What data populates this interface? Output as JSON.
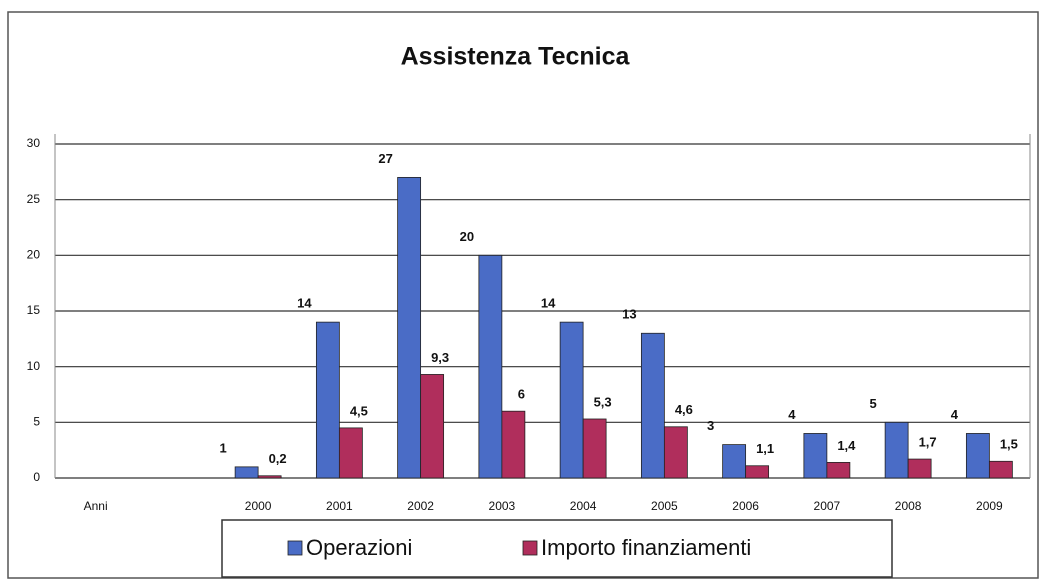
{
  "chart_data": {
    "type": "bar",
    "title": "Assistenza Tecnica",
    "categories": [
      "Anni",
      null,
      "2000",
      "2001",
      "2002",
      "2003",
      "2004",
      "2005",
      "2006",
      "2007",
      "2008",
      "2009"
    ],
    "series": [
      {
        "name": "Operazioni",
        "color": "#4a6cc6",
        "values": [
          null,
          null,
          1,
          14,
          27,
          20,
          14,
          13,
          3,
          4,
          5,
          4
        ]
      },
      {
        "name": "Importo finanziamenti",
        "color": "#b02e5c",
        "values": [
          null,
          null,
          0.2,
          4.5,
          9.3,
          6,
          5.3,
          4.6,
          1.1,
          1.4,
          1.7,
          1.5
        ],
        "value_labels": [
          null,
          null,
          "0,2",
          "4,5",
          "9,3",
          "6",
          "5,3",
          "4,6",
          "1,1",
          "1,4",
          "1,7",
          "1,5"
        ]
      }
    ],
    "ylim": [
      0,
      30
    ],
    "yticks": [
      0,
      5,
      10,
      15,
      20,
      25,
      30
    ],
    "grid": true,
    "legend": "bottom"
  }
}
